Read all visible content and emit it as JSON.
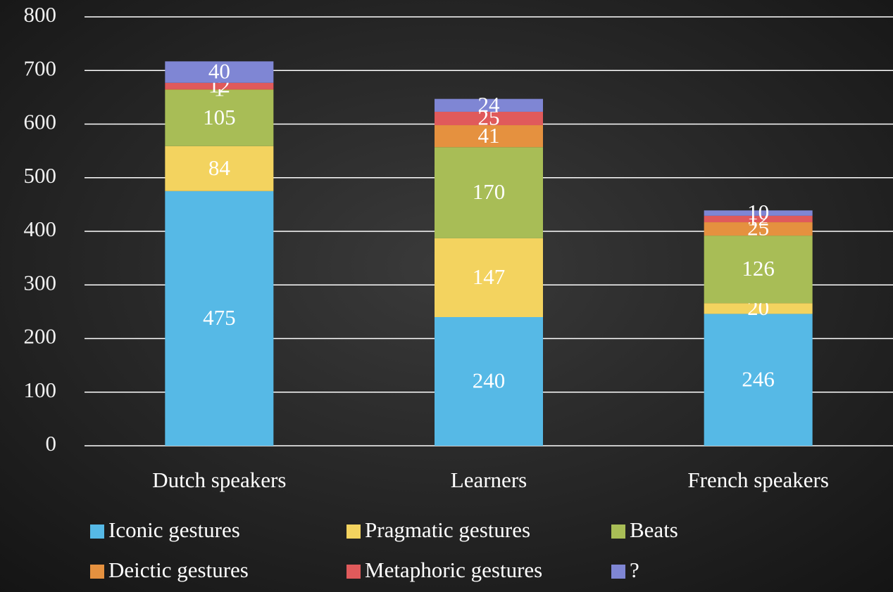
{
  "chart_data": {
    "type": "bar",
    "stacked": true,
    "categories": [
      "Dutch speakers",
      "Learners",
      "French speakers"
    ],
    "series": [
      {
        "name": "Iconic gestures",
        "color": "#56b9e6",
        "values": [
          475,
          240,
          246
        ]
      },
      {
        "name": "Pragmatic gestures",
        "color": "#f3d35f",
        "values": [
          84,
          147,
          20
        ]
      },
      {
        "name": "Beats",
        "color": "#a8bd56",
        "values": [
          105,
          170,
          126
        ]
      },
      {
        "name": "Deictic gestures",
        "color": "#e5913f",
        "values": [
          1,
          41,
          25
        ]
      },
      {
        "name": "Metaphoric gestures",
        "color": "#e05a5b",
        "values": [
          12,
          25,
          12
        ]
      },
      {
        "name": "?",
        "color": "#7f86d4",
        "values": [
          40,
          24,
          10
        ]
      }
    ],
    "ylim": [
      0,
      800
    ],
    "yticks": [
      0,
      100,
      200,
      300,
      400,
      500,
      600,
      700,
      800
    ],
    "grid": true,
    "legend": "bottom"
  }
}
